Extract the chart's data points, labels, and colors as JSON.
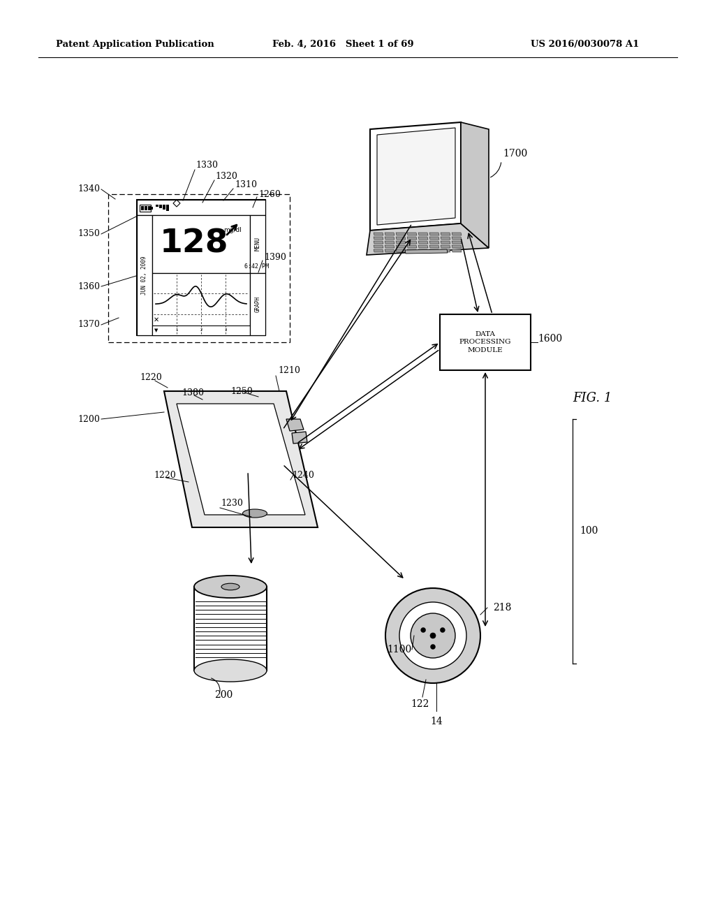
{
  "bg_color": "#ffffff",
  "header_left": "Patent Application Publication",
  "header_center": "Feb. 4, 2016   Sheet 1 of 69",
  "header_right": "US 2016/0030078 A1",
  "fig_label": "FIG. 1",
  "ref_100": "100",
  "ref_14": "14",
  "ref_122": "122",
  "ref_200": "200",
  "ref_218": "218",
  "ref_1100": "1100",
  "ref_1200": "1200",
  "ref_1210": "1210",
  "ref_1220a": "1220",
  "ref_1220b": "1220",
  "ref_1230": "1230",
  "ref_1240": "1240",
  "ref_1250": "1250",
  "ref_1260": "1260",
  "ref_1310": "1310",
  "ref_1320": "1320",
  "ref_1330": "1330",
  "ref_1340": "1340",
  "ref_1350": "1350",
  "ref_1360": "1360",
  "ref_1370": "1370",
  "ref_1380": "1380",
  "ref_1390": "1390",
  "ref_1600": "1600",
  "ref_1700": "1700",
  "dpm_text": "DATA\nPROCESSING\nMODULE"
}
